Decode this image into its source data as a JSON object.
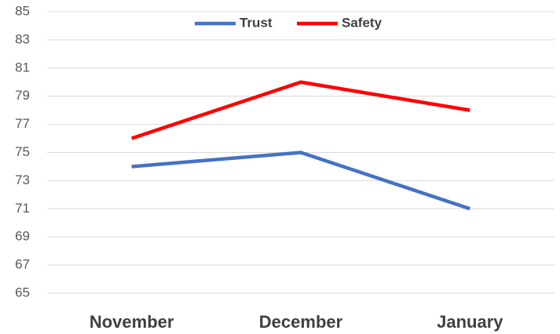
{
  "chart_data": {
    "type": "line",
    "categories": [
      "November",
      "December",
      "January"
    ],
    "series": [
      {
        "name": "Trust",
        "color": "#4472c4",
        "values": [
          74,
          75,
          71
        ]
      },
      {
        "name": "Safety",
        "color": "#ff0000",
        "values": [
          76,
          80,
          78
        ]
      }
    ],
    "ylim": [
      65,
      85
    ],
    "yticks": [
      65,
      67,
      69,
      71,
      73,
      75,
      77,
      79,
      81,
      83,
      85
    ],
    "grid": true,
    "legend": "top"
  }
}
